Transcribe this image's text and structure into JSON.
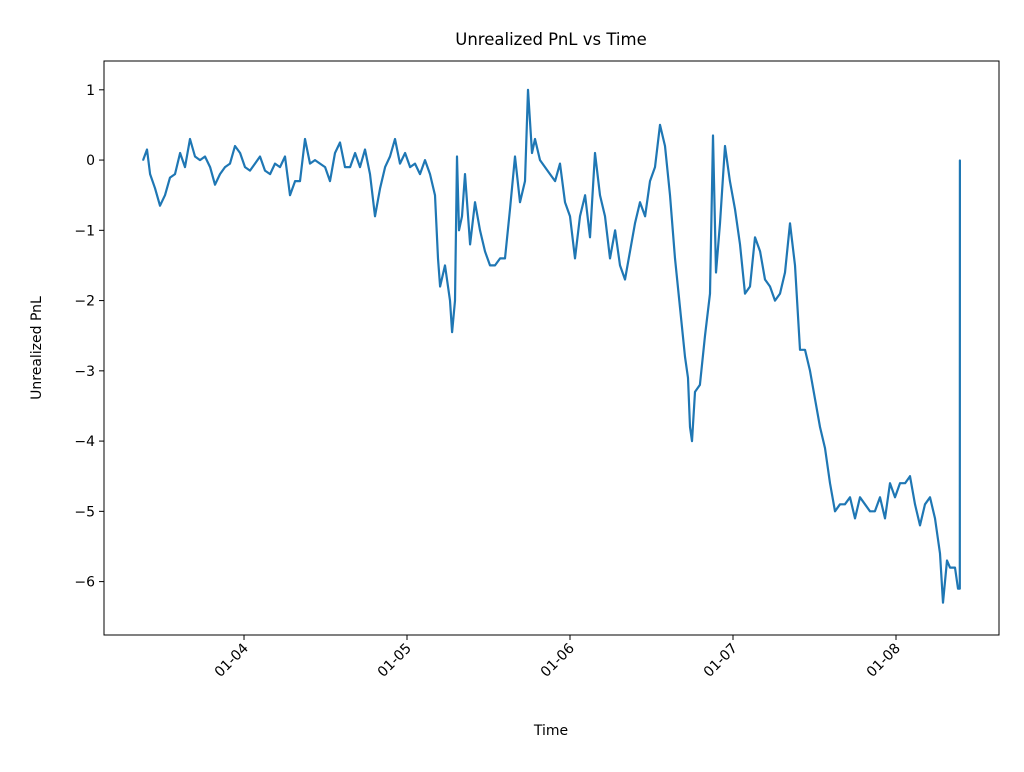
{
  "chart_data": {
    "type": "line",
    "title": "Unrealized PnL vs Time",
    "xlabel": "Time",
    "ylabel": "Unrealized PnL",
    "xlim": [
      "01-03 03:23",
      "01-08 15:10"
    ],
    "ylim": [
      -6.76,
      1.41
    ],
    "xticks": [
      "01-04",
      "01-05",
      "01-06",
      "01-07",
      "01-08"
    ],
    "yticks": [
      1,
      0,
      -1,
      -2,
      -3,
      -4,
      -5,
      -6
    ],
    "ytick_labels": [
      "1",
      "0",
      "−1",
      "−2",
      "−3",
      "−4",
      "−5",
      "−6"
    ],
    "grid": false,
    "color": "#1f77b4",
    "series": [
      {
        "points": [
          [
            "01-03 09:08",
            0
          ],
          [
            "01-03 09:43",
            0.15
          ],
          [
            "01-03 10:10",
            -0.2
          ],
          [
            "01-03 10:54",
            -0.4
          ],
          [
            "01-03 11:38",
            -0.65
          ],
          [
            "01-03 12:22",
            -0.5
          ],
          [
            "01-03 13:06",
            -0.25
          ],
          [
            "01-03 13:50",
            -0.2
          ],
          [
            "01-03 14:35",
            0.1
          ],
          [
            "01-03 15:19",
            -0.1
          ],
          [
            "01-03 16:03",
            0.3
          ],
          [
            "01-03 16:47",
            0.05
          ],
          [
            "01-03 17:31",
            0
          ],
          [
            "01-03 18:15",
            0.05
          ],
          [
            "01-03 19:00",
            -0.1
          ],
          [
            "01-03 19:44",
            -0.35
          ],
          [
            "01-03 20:28",
            -0.2
          ],
          [
            "01-03 21:12",
            -0.1
          ],
          [
            "01-03 21:56",
            -0.05
          ],
          [
            "01-03 22:40",
            0.2
          ],
          [
            "01-03 23:25",
            0.1
          ],
          [
            "01-04 00:09",
            -0.1
          ],
          [
            "01-04 00:53",
            -0.15
          ],
          [
            "01-04 01:37",
            -0.05
          ],
          [
            "01-04 02:21",
            0.05
          ],
          [
            "01-04 03:05",
            -0.15
          ],
          [
            "01-04 03:50",
            -0.2
          ],
          [
            "01-04 04:34",
            -0.05
          ],
          [
            "01-04 05:18",
            -0.1
          ],
          [
            "01-04 06:02",
            0.05
          ],
          [
            "01-04 06:46",
            -0.5
          ],
          [
            "01-04 07:31",
            -0.3
          ],
          [
            "01-04 08:15",
            -0.3
          ],
          [
            "01-04 08:59",
            0.3
          ],
          [
            "01-04 09:43",
            -0.05
          ],
          [
            "01-04 10:27",
            0
          ],
          [
            "01-04 11:11",
            -0.05
          ],
          [
            "01-04 11:56",
            -0.1
          ],
          [
            "01-04 12:40",
            -0.3
          ],
          [
            "01-04 13:24",
            0.1
          ],
          [
            "01-04 14:08",
            0.25
          ],
          [
            "01-04 14:52",
            -0.1
          ],
          [
            "01-04 15:37",
            -0.1
          ],
          [
            "01-04 16:21",
            0.1
          ],
          [
            "01-04 17:05",
            -0.1
          ],
          [
            "01-04 17:49",
            0.15
          ],
          [
            "01-04 18:33",
            -0.2
          ],
          [
            "01-04 19:17",
            -0.8
          ],
          [
            "01-04 20:02",
            -0.4
          ],
          [
            "01-04 20:46",
            -0.1
          ],
          [
            "01-04 21:30",
            0.05
          ],
          [
            "01-04 22:14",
            0.3
          ],
          [
            "01-04 22:58",
            -0.05
          ],
          [
            "01-04 23:43",
            0.1
          ],
          [
            "01-05 00:27",
            -0.1
          ],
          [
            "01-05 01:11",
            -0.05
          ],
          [
            "01-05 01:55",
            -0.2
          ],
          [
            "01-05 02:39",
            0
          ],
          [
            "01-05 03:23",
            -0.2
          ],
          [
            "01-05 04:07",
            -0.5
          ],
          [
            "01-05 04:34",
            -1.4
          ],
          [
            "01-05 04:52",
            -1.8
          ],
          [
            "01-05 05:36",
            -1.5
          ],
          [
            "01-05 06:20",
            -2.0
          ],
          [
            "01-05 06:38",
            -2.45
          ],
          [
            "01-05 07:04",
            -2.0
          ],
          [
            "01-05 07:22",
            0.05
          ],
          [
            "01-05 07:39",
            -1.0
          ],
          [
            "01-05 08:06",
            -0.8
          ],
          [
            "01-05 08:32",
            -0.2
          ],
          [
            "01-05 09:17",
            -1.2
          ],
          [
            "01-05 10:01",
            -0.6
          ],
          [
            "01-05 10:45",
            -1.0
          ],
          [
            "01-05 11:29",
            -1.3
          ],
          [
            "01-05 12:13",
            -1.5
          ],
          [
            "01-05 12:57",
            -1.5
          ],
          [
            "01-05 13:42",
            -1.4
          ],
          [
            "01-05 14:26",
            -1.4
          ],
          [
            "01-05 15:10",
            -0.7
          ],
          [
            "01-05 15:54",
            0.05
          ],
          [
            "01-05 16:38",
            -0.6
          ],
          [
            "01-05 17:22",
            -0.3
          ],
          [
            "01-05 17:49",
            1.0
          ],
          [
            "01-05 18:24",
            0.1
          ],
          [
            "01-05 18:51",
            0.3
          ],
          [
            "01-05 19:35",
            0
          ],
          [
            "01-05 20:19",
            -0.1
          ],
          [
            "01-05 21:03",
            -0.2
          ],
          [
            "01-05 21:48",
            -0.3
          ],
          [
            "01-05 22:32",
            -0.05
          ],
          [
            "01-05 23:16",
            -0.6
          ],
          [
            "01-06 00:00",
            -0.8
          ],
          [
            "01-06 00:44",
            -1.4
          ],
          [
            "01-06 01:28",
            -0.8
          ],
          [
            "01-06 02:13",
            -0.5
          ],
          [
            "01-06 02:57",
            -1.1
          ],
          [
            "01-06 03:41",
            0.1
          ],
          [
            "01-06 04:25",
            -0.5
          ],
          [
            "01-06 05:09",
            -0.8
          ],
          [
            "01-06 05:53",
            -1.4
          ],
          [
            "01-06 06:38",
            -1.0
          ],
          [
            "01-06 07:22",
            -1.5
          ],
          [
            "01-06 08:06",
            -1.7
          ],
          [
            "01-06 08:50",
            -1.3
          ],
          [
            "01-06 09:34",
            -0.9
          ],
          [
            "01-06 10:18",
            -0.6
          ],
          [
            "01-06 11:03",
            -0.8
          ],
          [
            "01-06 11:47",
            -0.3
          ],
          [
            "01-06 12:31",
            -0.1
          ],
          [
            "01-06 13:15",
            0.5
          ],
          [
            "01-06 13:59",
            0.2
          ],
          [
            "01-06 14:43",
            -0.5
          ],
          [
            "01-06 15:28",
            -1.4
          ],
          [
            "01-06 16:12",
            -2.1
          ],
          [
            "01-06 16:56",
            -2.8
          ],
          [
            "01-06 17:22",
            -3.1
          ],
          [
            "01-06 17:40",
            -3.8
          ],
          [
            "01-06 17:58",
            -4.0
          ],
          [
            "01-06 18:24",
            -3.3
          ],
          [
            "01-06 19:08",
            -3.2
          ],
          [
            "01-06 19:53",
            -2.5
          ],
          [
            "01-06 20:37",
            -1.9
          ],
          [
            "01-06 21:03",
            0.35
          ],
          [
            "01-06 21:30",
            -1.6
          ],
          [
            "01-06 22:05",
            -0.9
          ],
          [
            "01-06 22:49",
            0.2
          ],
          [
            "01-06 23:33",
            -0.3
          ],
          [
            "01-07 00:18",
            -0.7
          ],
          [
            "01-07 01:02",
            -1.2
          ],
          [
            "01-07 01:46",
            -1.9
          ],
          [
            "01-07 02:30",
            -1.8
          ],
          [
            "01-07 03:14",
            -1.1
          ],
          [
            "01-07 03:59",
            -1.3
          ],
          [
            "01-07 04:43",
            -1.7
          ],
          [
            "01-07 05:27",
            -1.8
          ],
          [
            "01-07 06:11",
            -2.0
          ],
          [
            "01-07 06:55",
            -1.9
          ],
          [
            "01-07 07:39",
            -1.6
          ],
          [
            "01-07 08:24",
            -0.9
          ],
          [
            "01-07 09:08",
            -1.5
          ],
          [
            "01-07 09:52",
            -2.7
          ],
          [
            "01-07 10:36",
            -2.7
          ],
          [
            "01-07 11:20",
            -3.0
          ],
          [
            "01-07 12:04",
            -3.4
          ],
          [
            "01-07 12:49",
            -3.8
          ],
          [
            "01-07 13:33",
            -4.1
          ],
          [
            "01-07 14:17",
            -4.6
          ],
          [
            "01-07 15:01",
            -5.0
          ],
          [
            "01-07 15:45",
            -4.9
          ],
          [
            "01-07 16:29",
            -4.9
          ],
          [
            "01-07 17:14",
            -4.8
          ],
          [
            "01-07 17:58",
            -5.1
          ],
          [
            "01-07 18:42",
            -4.8
          ],
          [
            "01-07 19:26",
            -4.9
          ],
          [
            "01-07 20:10",
            -5.0
          ],
          [
            "01-07 20:54",
            -5.0
          ],
          [
            "01-07 21:39",
            -4.8
          ],
          [
            "01-07 22:23",
            -5.1
          ],
          [
            "01-07 23:07",
            -4.6
          ],
          [
            "01-07 23:51",
            -4.8
          ],
          [
            "01-08 00:35",
            -4.6
          ],
          [
            "01-08 01:20",
            -4.6
          ],
          [
            "01-08 02:04",
            -4.5
          ],
          [
            "01-08 02:48",
            -4.9
          ],
          [
            "01-08 03:32",
            -5.2
          ],
          [
            "01-08 04:16",
            -4.9
          ],
          [
            "01-08 05:00",
            -4.8
          ],
          [
            "01-08 05:45",
            -5.1
          ],
          [
            "01-08 06:29",
            -5.6
          ],
          [
            "01-08 06:55",
            -6.3
          ],
          [
            "01-08 07:31",
            -5.7
          ],
          [
            "01-08 07:57",
            -5.8
          ],
          [
            "01-08 08:41",
            -5.8
          ],
          [
            "01-08 09:08",
            -6.1
          ],
          [
            "01-08 09:24",
            -6.1
          ],
          [
            "01-08 09:25",
            0
          ]
        ]
      }
    ]
  }
}
